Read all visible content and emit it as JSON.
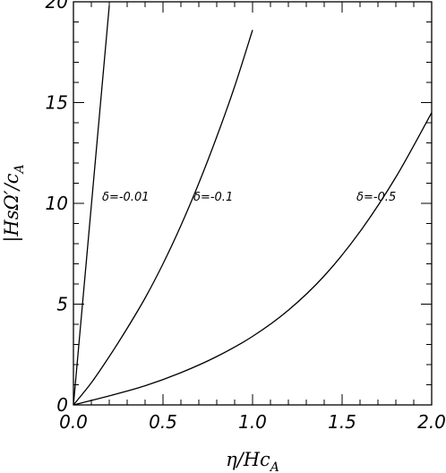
{
  "chart_data": {
    "type": "line",
    "xlabel": "η/Hc_A",
    "ylabel": "|HsΩ′/c_A|",
    "xlim": [
      0,
      2.0
    ],
    "ylim": [
      0,
      20
    ],
    "x_ticks": [
      "0.0",
      "0.5",
      "1.0",
      "1.5",
      "2.0"
    ],
    "y_ticks": [
      "0",
      "5",
      "10",
      "15",
      "20"
    ],
    "x_minor_ticks_per_major": 5,
    "y_minor_ticks_per_major": 5,
    "grid": false,
    "series": [
      {
        "name": "δ=-0.01",
        "x": [
          0,
          0.05,
          0.1,
          0.15,
          0.2
        ],
        "y": [
          0,
          4.95,
          9.9,
          14.85,
          19.8
        ]
      },
      {
        "name": "δ=-0.1",
        "x": [
          0,
          0.1,
          0.2,
          0.3,
          0.4,
          0.5,
          0.6,
          0.7,
          0.8,
          0.9,
          1.0
        ],
        "y": [
          0,
          1.1,
          2.4,
          3.8,
          5.3,
          7.0,
          8.9,
          11.0,
          13.3,
          15.8,
          18.6
        ]
      },
      {
        "name": "δ=-0.5",
        "x": [
          0,
          0.2,
          0.4,
          0.6,
          0.8,
          1.0,
          1.2,
          1.4,
          1.6,
          1.8,
          2.0
        ],
        "y": [
          0,
          0.45,
          0.95,
          1.6,
          2.4,
          3.4,
          4.7,
          6.4,
          8.6,
          11.3,
          14.5
        ]
      }
    ],
    "annotations": [
      {
        "text": "δ=-0.01",
        "x": 0.16,
        "y": 10.0
      },
      {
        "text": "δ=-0.1",
        "x": 0.67,
        "y": 10.0
      },
      {
        "text": "δ=-0.5",
        "x": 1.58,
        "y": 10.0
      }
    ]
  }
}
